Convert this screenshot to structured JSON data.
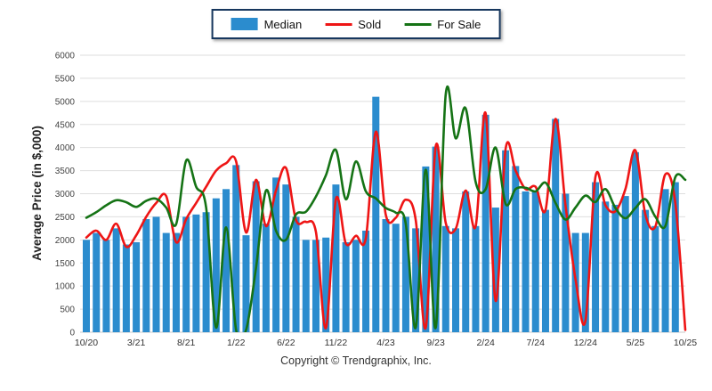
{
  "legend": {
    "items": [
      {
        "label": "Median",
        "color": "#2b8cce",
        "symbol": "box"
      },
      {
        "label": "Sold",
        "color": "#ee1515",
        "symbol": "line"
      },
      {
        "label": "For Sale",
        "color": "#157315",
        "symbol": "line"
      }
    ]
  },
  "footer": {
    "copyright": "Copyright © Trendgraphix, Inc."
  },
  "chart_data": {
    "type": "bar",
    "subtype": "bar-with-lines",
    "title": "",
    "xlabel": "",
    "ylabel": "Average Price (in $,000)",
    "ylim": [
      0,
      6000
    ],
    "ytick_step": 500,
    "grid": true,
    "legend_position": "top-center",
    "xtick_every": 5,
    "xtick_labels": [
      "10/20",
      "3/21",
      "8/21",
      "1/22",
      "6/22",
      "11/22",
      "4/23",
      "9/23",
      "2/24",
      "7/24",
      "12/24",
      "5/25",
      "10/25"
    ],
    "categories": [
      "10/20",
      "11/20",
      "12/20",
      "1/21",
      "2/21",
      "3/21",
      "4/21",
      "5/21",
      "6/21",
      "7/21",
      "8/21",
      "9/21",
      "10/21",
      "11/21",
      "12/21",
      "1/22",
      "2/22",
      "3/22",
      "4/22",
      "5/22",
      "6/22",
      "7/22",
      "8/22",
      "9/22",
      "10/22",
      "11/22",
      "12/22",
      "1/23",
      "2/23",
      "3/23",
      "4/23",
      "5/23",
      "6/23",
      "7/23",
      "8/23",
      "9/23",
      "10/23",
      "11/23",
      "12/23",
      "1/24",
      "2/24",
      "3/24",
      "4/24",
      "5/24",
      "6/24",
      "7/24",
      "8/24",
      "9/24",
      "10/24",
      "11/24",
      "12/24",
      "1/25",
      "2/25",
      "3/25",
      "4/25",
      "5/25",
      "6/25",
      "7/25",
      "8/25",
      "9/25",
      "10/25"
    ],
    "series": [
      {
        "name": "Median",
        "type": "bar",
        "color": "#2b8cce",
        "values": [
          2000,
          2150,
          2000,
          2250,
          1900,
          1950,
          2450,
          2500,
          2150,
          2150,
          2500,
          2550,
          2600,
          2900,
          3100,
          3620,
          2100,
          3270,
          2350,
          3350,
          3200,
          2500,
          2000,
          2000,
          2050,
          3200,
          1950,
          2000,
          2200,
          5100,
          2450,
          2350,
          2500,
          2250,
          3590,
          4020,
          2300,
          2250,
          3050,
          2300,
          4710,
          2700,
          3940,
          3600,
          3050,
          3050,
          2650,
          4620,
          3000,
          2150,
          2150,
          3250,
          2830,
          2760,
          2950,
          3900,
          2650,
          2300,
          3100,
          3250,
          null
        ]
      },
      {
        "name": "Sold",
        "type": "line",
        "color": "#ee1515",
        "values": [
          2050,
          2200,
          2000,
          2350,
          1850,
          2100,
          2500,
          2800,
          2950,
          1950,
          2450,
          2800,
          3150,
          3500,
          3660,
          3700,
          2160,
          3300,
          2300,
          3070,
          3560,
          2430,
          2390,
          2170,
          90,
          2880,
          1920,
          2090,
          2040,
          4340,
          2540,
          2480,
          2870,
          2430,
          100,
          4030,
          2370,
          2240,
          3070,
          2300,
          4740,
          680,
          3970,
          3500,
          3100,
          3150,
          2650,
          4620,
          2750,
          1150,
          250,
          3360,
          2750,
          2620,
          3100,
          3940,
          2550,
          2290,
          3420,
          2800,
          50
        ]
      },
      {
        "name": "For Sale",
        "type": "line",
        "color": "#157315",
        "values": [
          2480,
          2600,
          2750,
          2860,
          2815,
          2715,
          2845,
          2890,
          2700,
          2340,
          3720,
          3150,
          2700,
          100,
          2270,
          50,
          50,
          1400,
          3070,
          2200,
          2000,
          2550,
          2610,
          2940,
          3400,
          3950,
          2880,
          3700,
          3050,
          2900,
          2690,
          2590,
          2350,
          100,
          3520,
          100,
          5150,
          4200,
          4850,
          3250,
          3100,
          4000,
          2780,
          3100,
          3130,
          3050,
          3240,
          2800,
          2440,
          2700,
          2960,
          2820,
          3100,
          2690,
          2470,
          2690,
          2880,
          2500,
          2300,
          3360,
          3300
        ]
      }
    ]
  }
}
